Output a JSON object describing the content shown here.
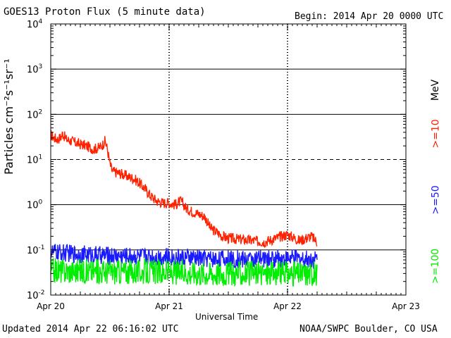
{
  "header": {
    "title": "GOES13 Proton Flux (5 minute data)",
    "begin": "Begin: 2014 Apr 20 0000 UTC"
  },
  "footer": {
    "updated": "Updated 2014 Apr 22 06:16:02 UTC",
    "credit": "NOAA/SWPC Boulder, CO USA"
  },
  "chart_data": {
    "type": "line",
    "title": "GOES13 Proton Flux (5 minute data)",
    "xlabel": "Universal Time",
    "ylabel": "Particles cm⁻²s⁻¹sr⁻¹",
    "yscale": "log",
    "ylim": [
      0.01,
      10000
    ],
    "xlim": [
      0,
      3
    ],
    "x_unit": "days since 2014 Apr 20 0000 UTC",
    "x_ticks": [
      {
        "x": 0,
        "label": "Apr 20"
      },
      {
        "x": 1,
        "label": "Apr 21"
      },
      {
        "x": 2,
        "label": "Apr 22"
      },
      {
        "x": 3,
        "label": "Apr 23"
      }
    ],
    "y_ticks": [
      {
        "exp": -2,
        "base": "10",
        "sup": "-2"
      },
      {
        "exp": -1,
        "base": "10",
        "sup": "-1"
      },
      {
        "exp": 0,
        "base": "10",
        "sup": "0"
      },
      {
        "exp": 1,
        "base": "10",
        "sup": "1"
      },
      {
        "exp": 2,
        "base": "10",
        "sup": "2"
      },
      {
        "exp": 3,
        "base": "10",
        "sup": "3"
      },
      {
        "exp": 4,
        "base": "10",
        "sup": "4"
      }
    ],
    "right_unit": "MeV",
    "threshold_lines": [
      {
        "y": 10,
        "style": "dashed"
      }
    ],
    "grid": "horizontal decades",
    "series": [
      {
        "name": ">=10",
        "color": "#ff2200",
        "noise": 0.12,
        "x": [
          0.0,
          0.03,
          0.06,
          0.09,
          0.1,
          0.13,
          0.17,
          0.2,
          0.24,
          0.28,
          0.32,
          0.36,
          0.4,
          0.43,
          0.46,
          0.48,
          0.5,
          0.52,
          0.55,
          0.6,
          0.65,
          0.7,
          0.75,
          0.8,
          0.85,
          0.9,
          0.95,
          1.0,
          1.05,
          1.1,
          1.15,
          1.2,
          1.3,
          1.35,
          1.4,
          1.45,
          1.5,
          1.6,
          1.7,
          1.8,
          1.9,
          2.0,
          2.1,
          2.2,
          2.25
        ],
        "y": [
          35,
          30,
          28,
          32,
          38,
          28,
          26,
          24,
          22,
          21,
          19,
          17,
          18,
          20,
          26,
          16,
          8,
          5.5,
          5.2,
          4.8,
          4.2,
          3.8,
          3.0,
          2.2,
          1.5,
          1.2,
          1.1,
          1.1,
          1.0,
          1.2,
          0.8,
          0.7,
          0.55,
          0.3,
          0.25,
          0.2,
          0.18,
          0.17,
          0.16,
          0.15,
          0.18,
          0.22,
          0.16,
          0.2,
          0.15
        ]
      },
      {
        "name": ">=50",
        "color": "#1a1aff",
        "noise": 0.2,
        "x": [
          0.0,
          0.25,
          0.5,
          0.75,
          1.0,
          1.25,
          1.5,
          1.75,
          2.0,
          2.25
        ],
        "y": [
          0.09,
          0.08,
          0.075,
          0.072,
          0.07,
          0.065,
          0.062,
          0.062,
          0.065,
          0.062
        ]
      },
      {
        "name": ">=100",
        "color": "#00ee00",
        "noise": 0.28,
        "x": [
          0.0,
          0.5,
          1.0,
          1.5,
          2.0,
          2.25
        ],
        "y": [
          0.035,
          0.033,
          0.032,
          0.03,
          0.03,
          0.03
        ]
      }
    ]
  }
}
